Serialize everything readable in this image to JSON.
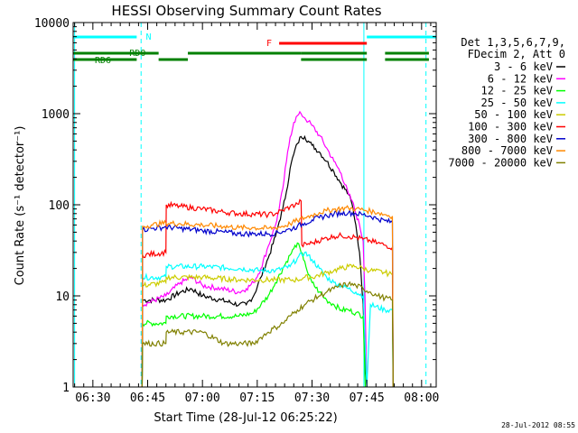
{
  "chart_data": {
    "type": "line",
    "title": "HESSI Observing Summary Count Rates",
    "xlabel": "Start Time (28-Jul-12 06:25:22)",
    "ylabel": "Count Rate (s⁻¹ detector⁻¹)",
    "yscale": "log",
    "ylim": [
      1,
      10000
    ],
    "xlim_minutes": [
      -5.4,
      94.0
    ],
    "grid": false,
    "x_ticks": [
      {
        "t": 0,
        "label": "06:30"
      },
      {
        "t": 15,
        "label": "06:45"
      },
      {
        "t": 30,
        "label": "07:00"
      },
      {
        "t": 45,
        "label": "07:15"
      },
      {
        "t": 60,
        "label": "07:30"
      },
      {
        "t": 75,
        "label": "07:45"
      },
      {
        "t": 90,
        "label": "08:00"
      }
    ],
    "y_ticks": [
      {
        "v": 1,
        "label": "1"
      },
      {
        "v": 10,
        "label": "10"
      },
      {
        "v": 100,
        "label": "100"
      },
      {
        "v": 1000,
        "label": "1000"
      },
      {
        "v": 10000,
        "label": "10000"
      }
    ],
    "legend_header": [
      "Det 1,3,5,6,7,9,",
      "FDecim 2, Att 0"
    ],
    "legend_position": "right",
    "series": [
      {
        "name": "3 - 6 keV",
        "color": "#000000",
        "points": [
          [
            13.5,
            1
          ],
          [
            13.6,
            9
          ],
          [
            20,
            9
          ],
          [
            24,
            11
          ],
          [
            27,
            12
          ],
          [
            30,
            10
          ],
          [
            35,
            9
          ],
          [
            40,
            8
          ],
          [
            42,
            8
          ],
          [
            44,
            10
          ],
          [
            46,
            16
          ],
          [
            48,
            26
          ],
          [
            50,
            45
          ],
          [
            51,
            65
          ],
          [
            52,
            90
          ],
          [
            53,
            140
          ],
          [
            54,
            250
          ],
          [
            55,
            360
          ],
          [
            56,
            470
          ],
          [
            57,
            560
          ],
          [
            58,
            560
          ],
          [
            59,
            500
          ],
          [
            60,
            450
          ],
          [
            62,
            380
          ],
          [
            64,
            300
          ],
          [
            66,
            230
          ],
          [
            68,
            170
          ],
          [
            70,
            130
          ],
          [
            71,
            100
          ],
          [
            72,
            60
          ],
          [
            73,
            30
          ],
          [
            74,
            8
          ],
          [
            74.5,
            2
          ],
          [
            75,
            1
          ]
        ]
      },
      {
        "name": "6 - 12 keV",
        "color": "#ff00ff",
        "points": [
          [
            13.5,
            1
          ],
          [
            13.6,
            8
          ],
          [
            20,
            10
          ],
          [
            24,
            14
          ],
          [
            27,
            16
          ],
          [
            30,
            13
          ],
          [
            35,
            12
          ],
          [
            40,
            11
          ],
          [
            42,
            12
          ],
          [
            44,
            14
          ],
          [
            46,
            20
          ],
          [
            48,
            35
          ],
          [
            50,
            60
          ],
          [
            51,
            90
          ],
          [
            52,
            150
          ],
          [
            53,
            300
          ],
          [
            54,
            550
          ],
          [
            55,
            800
          ],
          [
            56,
            950
          ],
          [
            57,
            1000
          ],
          [
            58,
            900
          ],
          [
            59,
            820
          ],
          [
            60,
            740
          ],
          [
            62,
            580
          ],
          [
            64,
            420
          ],
          [
            66,
            300
          ],
          [
            68,
            220
          ],
          [
            70,
            130
          ],
          [
            71,
            110
          ],
          [
            72,
            80
          ],
          [
            73,
            60
          ],
          [
            74,
            40
          ],
          [
            74.5,
            10
          ],
          [
            75,
            1
          ]
        ]
      },
      {
        "name": "12 - 25 keV",
        "color": "#00ff00",
        "points": [
          [
            13.5,
            1
          ],
          [
            13.6,
            5
          ],
          [
            20,
            5
          ],
          [
            20.1,
            6
          ],
          [
            30,
            6
          ],
          [
            40,
            6
          ],
          [
            44,
            6.5
          ],
          [
            46,
            8
          ],
          [
            48,
            10
          ],
          [
            50,
            14
          ],
          [
            52,
            20
          ],
          [
            54,
            28
          ],
          [
            55,
            33
          ],
          [
            56,
            38
          ],
          [
            57,
            30
          ],
          [
            58,
            24
          ],
          [
            59,
            17
          ],
          [
            60,
            14
          ],
          [
            62,
            11
          ],
          [
            64,
            9
          ],
          [
            66,
            8
          ],
          [
            68,
            7
          ],
          [
            70,
            7
          ],
          [
            72,
            6.5
          ],
          [
            74,
            6
          ],
          [
            74.6,
            1
          ]
        ]
      },
      {
        "name": "25 - 50 keV",
        "color": "#00ffff",
        "points": [
          [
            13.5,
            1
          ],
          [
            13.6,
            16
          ],
          [
            20,
            16
          ],
          [
            20.1,
            21
          ],
          [
            30,
            21
          ],
          [
            40,
            20
          ],
          [
            46,
            19
          ],
          [
            50,
            19
          ],
          [
            54,
            21
          ],
          [
            56,
            26
          ],
          [
            58,
            30
          ],
          [
            60,
            25
          ],
          [
            62,
            20
          ],
          [
            64,
            16
          ],
          [
            66,
            14
          ],
          [
            68,
            13
          ],
          [
            70,
            12
          ],
          [
            72,
            11
          ],
          [
            74,
            10
          ],
          [
            75,
            1
          ],
          [
            76,
            8
          ],
          [
            80,
            7
          ],
          [
            82,
            7
          ],
          [
            82.2,
            1
          ]
        ]
      },
      {
        "name": "50 - 100 keV",
        "color": "#cccc00",
        "points": [
          [
            13.5,
            1
          ],
          [
            13.6,
            13
          ],
          [
            20,
            14
          ],
          [
            20.1,
            16
          ],
          [
            30,
            16
          ],
          [
            40,
            15
          ],
          [
            46,
            15
          ],
          [
            50,
            15
          ],
          [
            54,
            15
          ],
          [
            56,
            15
          ],
          [
            58,
            16
          ],
          [
            60,
            16
          ],
          [
            64,
            18
          ],
          [
            66,
            19
          ],
          [
            68,
            20
          ],
          [
            70,
            21
          ],
          [
            72,
            21
          ],
          [
            74,
            20
          ],
          [
            76,
            19
          ],
          [
            80,
            18
          ],
          [
            82,
            17
          ],
          [
            82.2,
            1
          ]
        ]
      },
      {
        "name": "100 - 300 keV",
        "color": "#ff0000",
        "points": [
          [
            13.5,
            1
          ],
          [
            13.6,
            28
          ],
          [
            20,
            30
          ],
          [
            20.1,
            100
          ],
          [
            24,
            96
          ],
          [
            30,
            90
          ],
          [
            36,
            83
          ],
          [
            40,
            80
          ],
          [
            44,
            79
          ],
          [
            48,
            78
          ],
          [
            50,
            80
          ],
          [
            52,
            87
          ],
          [
            54,
            95
          ],
          [
            56,
            102
          ],
          [
            57,
            110
          ],
          [
            57.2,
            36
          ],
          [
            60,
            38
          ],
          [
            63,
            42
          ],
          [
            66,
            45
          ],
          [
            68,
            46
          ],
          [
            70,
            45
          ],
          [
            72,
            44
          ],
          [
            74,
            42
          ],
          [
            76,
            40
          ],
          [
            78,
            38
          ],
          [
            80,
            36
          ],
          [
            82,
            34
          ],
          [
            82.2,
            1
          ]
        ]
      },
      {
        "name": "300 - 800 keV",
        "color": "#0000cc",
        "points": [
          [
            13.5,
            1
          ],
          [
            13.6,
            53
          ],
          [
            16,
            55
          ],
          [
            20,
            57
          ],
          [
            24,
            55
          ],
          [
            30,
            52
          ],
          [
            36,
            50
          ],
          [
            40,
            48
          ],
          [
            44,
            48
          ],
          [
            48,
            48
          ],
          [
            50,
            49
          ],
          [
            52,
            51
          ],
          [
            54,
            54
          ],
          [
            56,
            58
          ],
          [
            58,
            63
          ],
          [
            60,
            68
          ],
          [
            62,
            72
          ],
          [
            64,
            76
          ],
          [
            66,
            79
          ],
          [
            68,
            81
          ],
          [
            70,
            82
          ],
          [
            72,
            80
          ],
          [
            74,
            78
          ],
          [
            76,
            75
          ],
          [
            78,
            70
          ],
          [
            80,
            67
          ],
          [
            82,
            64
          ],
          [
            82.2,
            1
          ]
        ]
      },
      {
        "name": "800 - 7000 keV",
        "color": "#ff8800",
        "points": [
          [
            13.5,
            1
          ],
          [
            13.6,
            58
          ],
          [
            16,
            60
          ],
          [
            20,
            63
          ],
          [
            24,
            62
          ],
          [
            30,
            60
          ],
          [
            36,
            58
          ],
          [
            40,
            56
          ],
          [
            44,
            56
          ],
          [
            48,
            55
          ],
          [
            50,
            56
          ],
          [
            52,
            58
          ],
          [
            54,
            62
          ],
          [
            56,
            67
          ],
          [
            58,
            72
          ],
          [
            60,
            77
          ],
          [
            62,
            82
          ],
          [
            64,
            86
          ],
          [
            66,
            89
          ],
          [
            68,
            91
          ],
          [
            70,
            92
          ],
          [
            72,
            90
          ],
          [
            74,
            88
          ],
          [
            76,
            85
          ],
          [
            78,
            82
          ],
          [
            80,
            78
          ],
          [
            82,
            75
          ],
          [
            82.2,
            1
          ]
        ]
      },
      {
        "name": "7000 - 20000 keV",
        "color": "#808000",
        "points": [
          [
            13.5,
            1
          ],
          [
            13.6,
            3
          ],
          [
            20,
            3
          ],
          [
            20.1,
            4
          ],
          [
            30,
            4
          ],
          [
            36,
            3
          ],
          [
            40,
            3
          ],
          [
            44,
            3
          ],
          [
            46,
            3.5
          ],
          [
            48,
            4
          ],
          [
            50,
            4.5
          ],
          [
            52,
            5
          ],
          [
            54,
            6
          ],
          [
            56,
            7
          ],
          [
            58,
            8
          ],
          [
            60,
            9
          ],
          [
            62,
            10
          ],
          [
            64,
            11
          ],
          [
            66,
            12
          ],
          [
            68,
            13
          ],
          [
            70,
            13.5
          ],
          [
            72,
            13
          ],
          [
            74,
            12
          ],
          [
            76,
            11
          ],
          [
            78,
            10
          ],
          [
            80,
            9.5
          ],
          [
            82,
            9
          ],
          [
            82.2,
            1
          ]
        ]
      }
    ],
    "flag_bars": [
      {
        "label": "N",
        "color": "#00ffff",
        "spans": [
          [
            -5.4,
            12
          ],
          [
            75,
            94
          ]
        ],
        "level": 0
      },
      {
        "label": "F",
        "color": "#ff0000",
        "spans": [
          [
            51,
            75
          ]
        ],
        "level": 1
      },
      {
        "label": "RD0",
        "color": "#008000",
        "spans": [
          [
            -5.4,
            18
          ],
          [
            26,
            57
          ],
          [
            57,
            75
          ],
          [
            80,
            92
          ]
        ],
        "level": 2
      },
      {
        "label": "RD6",
        "color": "#008000",
        "spans": [
          [
            -5.4,
            12
          ],
          [
            18,
            26
          ],
          [
            57,
            75
          ],
          [
            80,
            92
          ]
        ],
        "level": 3
      }
    ],
    "boundary_lines": [
      {
        "t": -5.0,
        "color": "#00ffff",
        "style": "solid"
      },
      {
        "t": 13.2,
        "color": "#00ffff",
        "style": "dashed"
      },
      {
        "t": 74.2,
        "color": "#00ffff",
        "style": "solid"
      },
      {
        "t": 91.2,
        "color": "#00ffff",
        "style": "dashed"
      }
    ],
    "footer_stamp": "28-Jul-2012 08:55"
  }
}
